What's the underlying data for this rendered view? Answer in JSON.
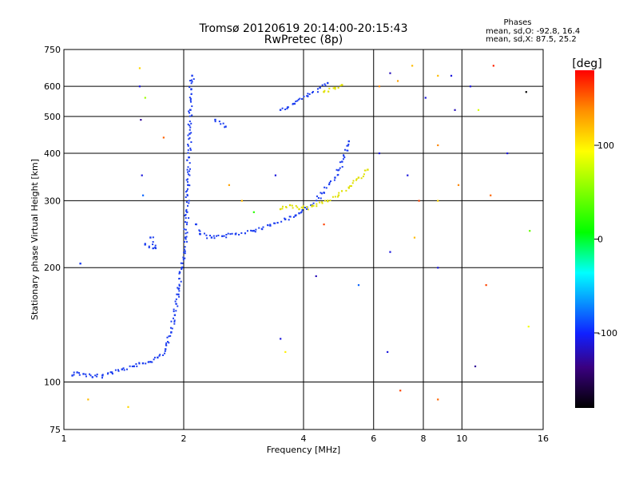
{
  "chart_data": {
    "type": "scatter",
    "title": "Tromsø 20120619 20:14:00-20:15:43",
    "subtitle": "RwPretec (8p)",
    "xlabel": "Frequency [MHz]",
    "ylabel": "Stationary phase Virtual Height [km]",
    "xscale": "log",
    "yscale": "log",
    "xlim": [
      1,
      16
    ],
    "ylim": [
      75,
      750
    ],
    "xticks": [
      1,
      2,
      4,
      6,
      8,
      10,
      16
    ],
    "xtick_labels": [
      "1",
      "2",
      "4",
      "6",
      "8",
      "10",
      "16"
    ],
    "yticks": [
      75,
      100,
      200,
      300,
      400,
      500,
      600,
      750
    ],
    "ytick_labels": [
      "75",
      "100",
      "200",
      "300",
      "400",
      "500",
      "600",
      "750"
    ],
    "grid": true,
    "phase_box": {
      "title": "Phases",
      "line_o": "mean, sd,O: -92.8, 16.4",
      "line_x": "mean, sd,X:  87.5, 25.2"
    },
    "colorbar": {
      "label": "[deg]",
      "range": [
        -180,
        180
      ],
      "ticks": [
        100,
        0,
        -100
      ],
      "tick_labels": [
        "100",
        "0",
        "-100"
      ]
    },
    "traces": [
      {
        "mode": "O",
        "phase": -100,
        "color": "#1a3cf0",
        "points": [
          [
            1.05,
            104
          ],
          [
            1.08,
            106
          ],
          [
            1.12,
            105
          ],
          [
            1.18,
            103
          ],
          [
            1.25,
            104
          ],
          [
            1.32,
            106
          ],
          [
            1.4,
            108
          ],
          [
            1.5,
            110
          ],
          [
            1.58,
            112
          ],
          [
            1.65,
            113
          ],
          [
            1.72,
            116
          ],
          [
            1.8,
            122
          ],
          [
            1.86,
            135
          ],
          [
            1.9,
            150
          ],
          [
            1.94,
            170
          ],
          [
            1.98,
            200
          ],
          [
            2.02,
            240
          ],
          [
            2.04,
            280
          ],
          [
            2.05,
            330
          ],
          [
            2.06,
            390
          ],
          [
            2.07,
            450
          ],
          [
            2.08,
            520
          ],
          [
            2.09,
            590
          ],
          [
            2.1,
            640
          ],
          [
            2.15,
            260
          ],
          [
            2.2,
            245
          ],
          [
            2.35,
            240
          ],
          [
            2.5,
            242
          ],
          [
            2.7,
            245
          ],
          [
            3.0,
            250
          ],
          [
            3.3,
            258
          ],
          [
            3.6,
            268
          ],
          [
            3.9,
            278
          ],
          [
            4.2,
            292
          ],
          [
            4.5,
            315
          ],
          [
            4.8,
            345
          ],
          [
            5.0,
            380
          ],
          [
            5.2,
            430
          ],
          [
            3.5,
            520
          ],
          [
            3.8,
            540
          ],
          [
            4.1,
            565
          ],
          [
            4.4,
            595
          ],
          [
            4.6,
            612
          ],
          [
            1.6,
            230
          ],
          [
            1.7,
            225
          ],
          [
            1.65,
            240
          ],
          [
            2.4,
            490
          ],
          [
            2.55,
            470
          ],
          [
            1.1,
            205
          ]
        ]
      },
      {
        "mode": "X",
        "phase": 90,
        "color": "#e0e000",
        "points": [
          [
            3.5,
            285
          ],
          [
            3.7,
            292
          ],
          [
            3.9,
            285
          ],
          [
            4.2,
            290
          ],
          [
            4.6,
            300
          ],
          [
            4.9,
            310
          ],
          [
            5.2,
            325
          ],
          [
            5.5,
            345
          ],
          [
            5.8,
            362
          ],
          [
            4.5,
            580
          ],
          [
            4.8,
            595
          ],
          [
            5.0,
            605
          ]
        ]
      }
    ],
    "scatter_noise": [
      {
        "x": 1.55,
        "y": 670,
        "phase": 110
      },
      {
        "x": 1.55,
        "y": 600,
        "phase": -110
      },
      {
        "x": 1.6,
        "y": 560,
        "phase": 60
      },
      {
        "x": 1.56,
        "y": 490,
        "phase": -130
      },
      {
        "x": 1.78,
        "y": 440,
        "phase": 150
      },
      {
        "x": 1.57,
        "y": 350,
        "phase": -110
      },
      {
        "x": 1.58,
        "y": 310,
        "phase": -80
      },
      {
        "x": 2.6,
        "y": 330,
        "phase": 130
      },
      {
        "x": 2.8,
        "y": 300,
        "phase": 120
      },
      {
        "x": 3.0,
        "y": 280,
        "phase": 20
      },
      {
        "x": 3.4,
        "y": 350,
        "phase": -110
      },
      {
        "x": 3.5,
        "y": 130,
        "phase": -110
      },
      {
        "x": 3.6,
        "y": 120,
        "phase": 100
      },
      {
        "x": 4.3,
        "y": 190,
        "phase": -120
      },
      {
        "x": 4.5,
        "y": 260,
        "phase": 160
      },
      {
        "x": 6.2,
        "y": 600,
        "phase": 140
      },
      {
        "x": 6.6,
        "y": 650,
        "phase": -120
      },
      {
        "x": 6.9,
        "y": 620,
        "phase": 130
      },
      {
        "x": 7.5,
        "y": 680,
        "phase": 120
      },
      {
        "x": 7.3,
        "y": 350,
        "phase": -110
      },
      {
        "x": 7.8,
        "y": 300,
        "phase": 160
      },
      {
        "x": 8.1,
        "y": 560,
        "phase": -110
      },
      {
        "x": 8.7,
        "y": 640,
        "phase": 120
      },
      {
        "x": 8.7,
        "y": 420,
        "phase": 140
      },
      {
        "x": 8.7,
        "y": 300,
        "phase": 110
      },
      {
        "x": 8.7,
        "y": 200,
        "phase": -110
      },
      {
        "x": 8.7,
        "y": 90,
        "phase": 150
      },
      {
        "x": 9.4,
        "y": 640,
        "phase": -110
      },
      {
        "x": 9.6,
        "y": 520,
        "phase": -120
      },
      {
        "x": 9.8,
        "y": 330,
        "phase": 140
      },
      {
        "x": 10.5,
        "y": 600,
        "phase": -110
      },
      {
        "x": 11.0,
        "y": 520,
        "phase": 80
      },
      {
        "x": 11.5,
        "y": 180,
        "phase": 160
      },
      {
        "x": 12.0,
        "y": 680,
        "phase": 170
      },
      {
        "x": 13.0,
        "y": 400,
        "phase": -110
      },
      {
        "x": 14.5,
        "y": 580,
        "phase": -180
      },
      {
        "x": 14.8,
        "y": 250,
        "phase": 40
      },
      {
        "x": 14.7,
        "y": 140,
        "phase": 90
      },
      {
        "x": 6.5,
        "y": 120,
        "phase": -110
      },
      {
        "x": 7.0,
        "y": 95,
        "phase": 160
      },
      {
        "x": 5.5,
        "y": 180,
        "phase": -80
      },
      {
        "x": 1.15,
        "y": 90,
        "phase": 120
      },
      {
        "x": 1.45,
        "y": 86,
        "phase": 110
      },
      {
        "x": 10.8,
        "y": 110,
        "phase": -130
      },
      {
        "x": 6.2,
        "y": 400,
        "phase": -110
      },
      {
        "x": 6.6,
        "y": 220,
        "phase": -110
      },
      {
        "x": 7.6,
        "y": 240,
        "phase": 120
      },
      {
        "x": 11.8,
        "y": 310,
        "phase": 150
      }
    ]
  }
}
